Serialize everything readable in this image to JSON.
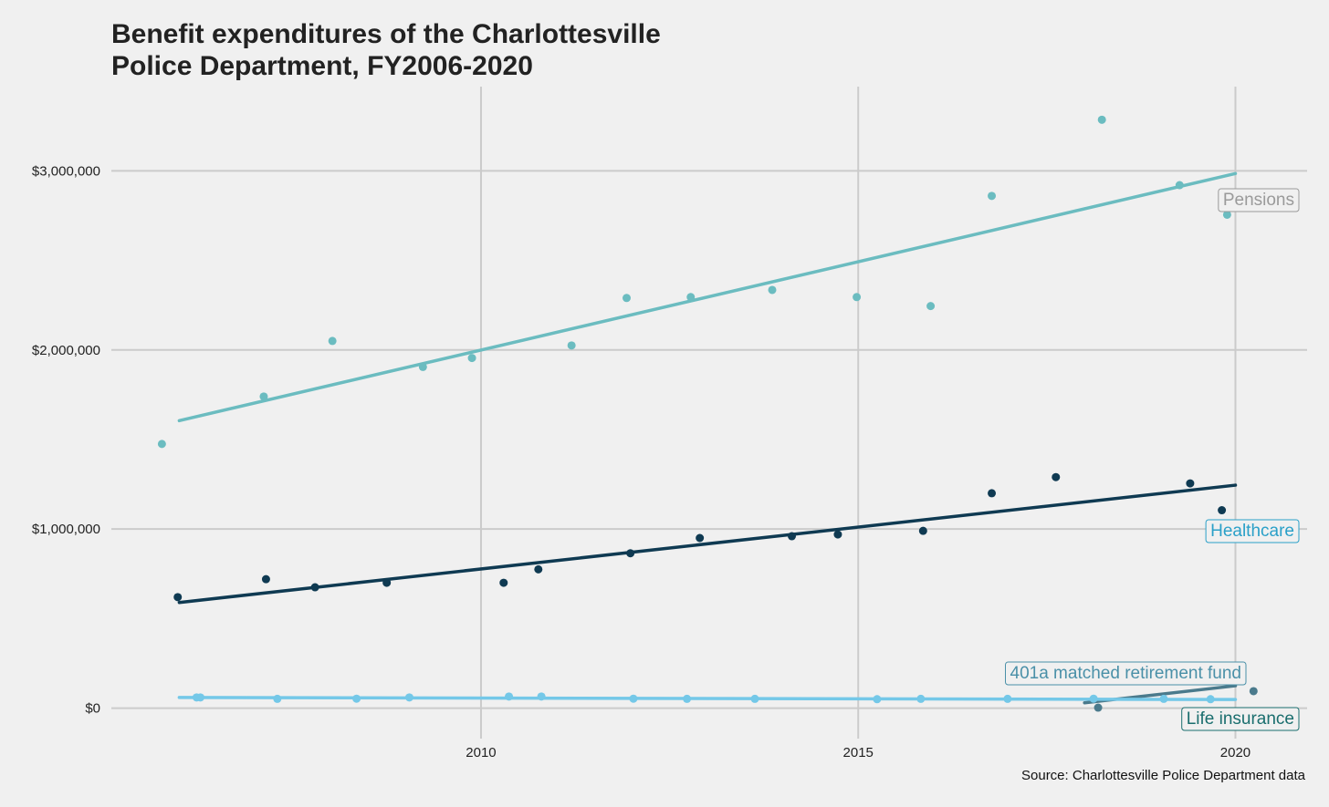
{
  "title_lines": [
    "Benefit expenditures of the Charlottesville",
    "Police Department, FY2006-2020"
  ],
  "source": "Source: Charlottesville Police Department data",
  "chart_data": {
    "type": "scatter",
    "title": "Benefit expenditures of the Charlottesville Police Department, FY2006-2020",
    "xlabel": "",
    "ylabel": "",
    "xlim": [
      2005.1,
      2020.95
    ],
    "ylim": [
      -170000,
      3470000
    ],
    "x_ticks": [
      2010,
      2015,
      2020
    ],
    "y_ticks": [
      {
        "value": 0,
        "label": "$0"
      },
      {
        "value": 1000000,
        "label": "$1,000,000"
      },
      {
        "value": 2000000,
        "label": "$2,000,000"
      },
      {
        "value": 3000000,
        "label": "$3,000,000"
      }
    ],
    "grid": true,
    "legend": "direct labels at right",
    "series": [
      {
        "name": "Pensions",
        "color": "#6bbcc0",
        "label_text_color": "#9a9a9a",
        "label_border_color": "#9a9a9a",
        "points": [
          [
            2005.77,
            1475000
          ],
          [
            2007.12,
            1740000
          ],
          [
            2008.03,
            2050000
          ],
          [
            2009.23,
            1905000
          ],
          [
            2009.88,
            1955000
          ],
          [
            2011.2,
            2025000
          ],
          [
            2011.93,
            2290000
          ],
          [
            2012.78,
            2295000
          ],
          [
            2013.86,
            2335000
          ],
          [
            2014.98,
            2295000
          ],
          [
            2015.96,
            2245000
          ],
          [
            2016.77,
            2860000
          ],
          [
            2018.23,
            3285000
          ],
          [
            2019.26,
            2920000
          ],
          [
            2019.89,
            2755000
          ]
        ],
        "trend": [
          [
            2006,
            1605000
          ],
          [
            2020,
            2985000
          ]
        ]
      },
      {
        "name": "Healthcare",
        "color": "#0f3a52",
        "label_text_color": "#2aa0c8",
        "label_border_color": "#2aa0c8",
        "points": [
          [
            2005.98,
            620000
          ],
          [
            2007.15,
            720000
          ],
          [
            2007.8,
            675000
          ],
          [
            2008.75,
            700000
          ],
          [
            2010.3,
            700000
          ],
          [
            2010.76,
            775000
          ],
          [
            2011.98,
            865000
          ],
          [
            2012.9,
            950000
          ],
          [
            2014.12,
            960000
          ],
          [
            2014.73,
            970000
          ],
          [
            2015.86,
            990000
          ],
          [
            2016.77,
            1200000
          ],
          [
            2017.62,
            1290000
          ],
          [
            2019.4,
            1255000
          ],
          [
            2019.82,
            1105000
          ]
        ],
        "trend": [
          [
            2006,
            590000
          ],
          [
            2020,
            1245000
          ]
        ]
      },
      {
        "name": "401a matched retirement fund",
        "color": "#4a7a8c",
        "label_text_color": "#4a90a8",
        "label_border_color": "#4a90a8",
        "points": [
          [
            2018.18,
            3000
          ],
          [
            2020.24,
            95000
          ]
        ],
        "trend": [
          [
            2018,
            30000
          ],
          [
            2020,
            125000
          ]
        ]
      },
      {
        "name": "Life insurance",
        "color": "#74c8e8",
        "label_text_color": "#1a6e6e",
        "label_border_color": "#1a6e6e",
        "points": [
          [
            2006.28,
            60000
          ],
          [
            2006.23,
            60000
          ],
          [
            2007.3,
            52000
          ],
          [
            2008.35,
            53000
          ],
          [
            2009.05,
            60000
          ],
          [
            2010.37,
            65000
          ],
          [
            2010.8,
            65000
          ],
          [
            2012.02,
            53000
          ],
          [
            2012.73,
            52000
          ],
          [
            2013.63,
            52000
          ],
          [
            2015.25,
            50000
          ],
          [
            2015.83,
            52000
          ],
          [
            2016.98,
            52000
          ],
          [
            2018.12,
            53000
          ],
          [
            2019.05,
            52000
          ],
          [
            2019.67,
            50000
          ]
        ],
        "trend": [
          [
            2006,
            60000
          ],
          [
            2020,
            48000
          ]
        ]
      }
    ]
  }
}
